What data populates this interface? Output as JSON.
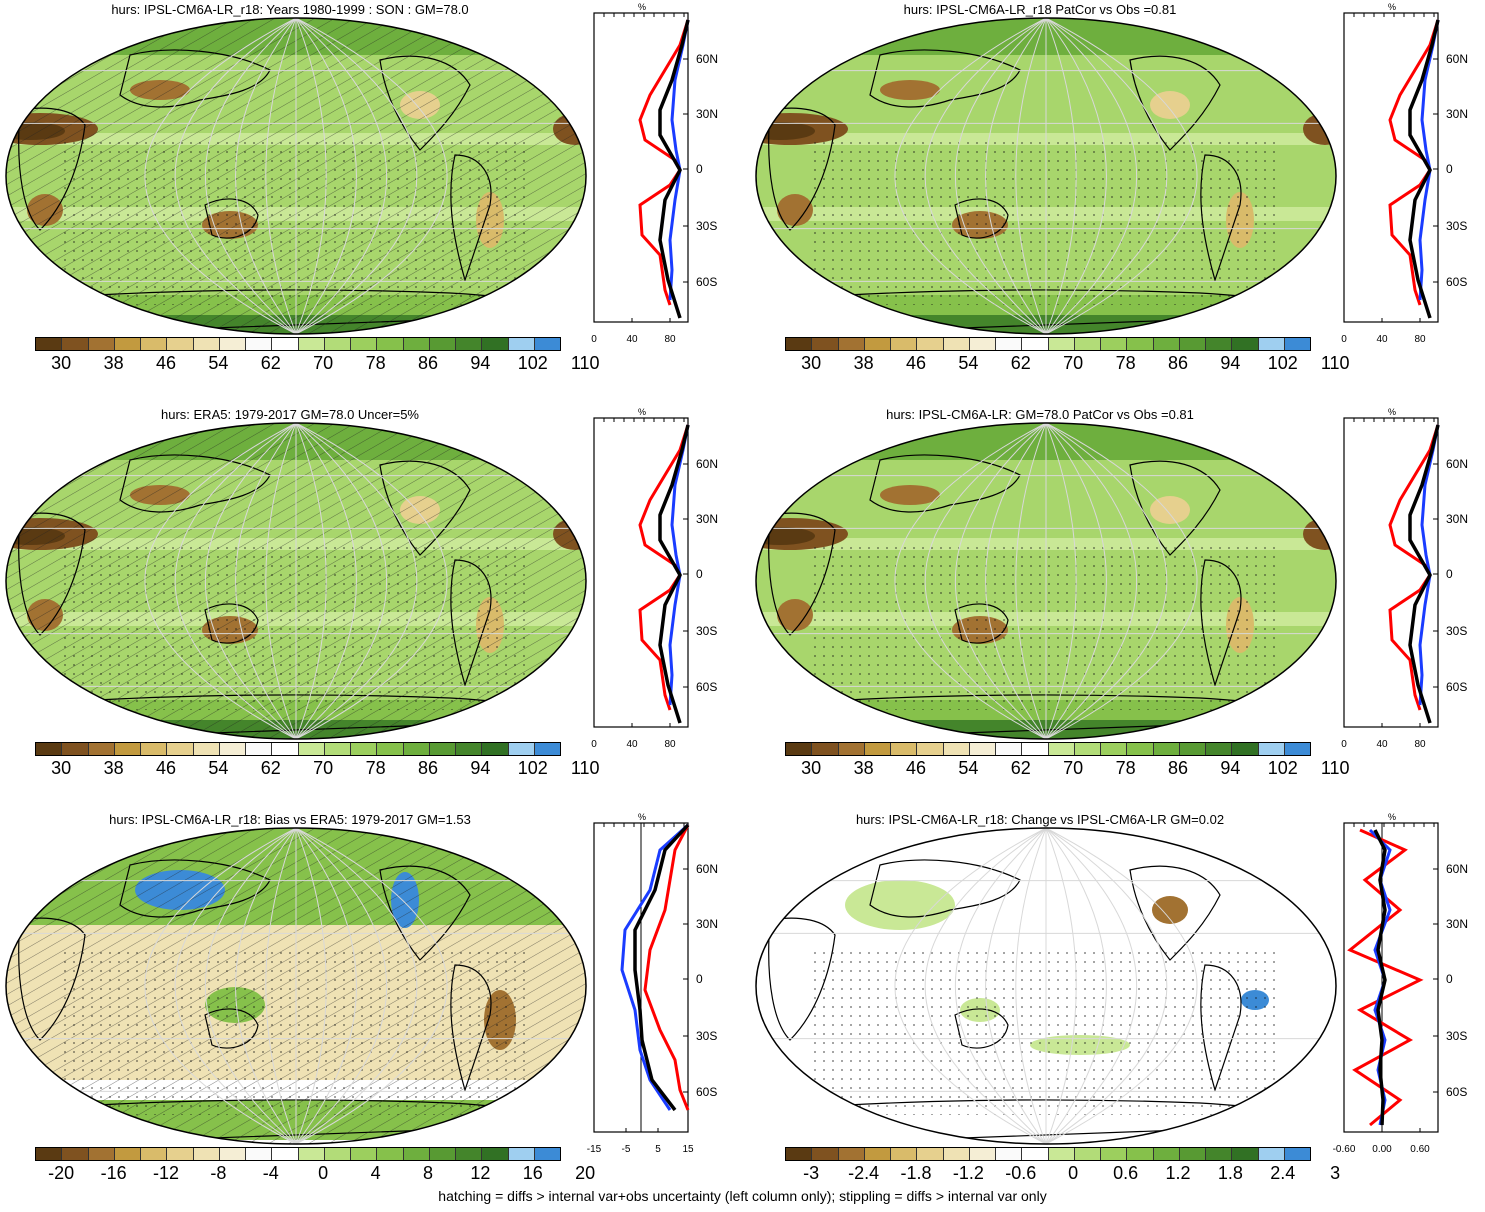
{
  "palettes": {
    "abs": [
      "#5a3a12",
      "#7f5220",
      "#a27232",
      "#c29a3f",
      "#d9bb6a",
      "#e6d08e",
      "#efe2b4",
      "#f5eed5",
      "#fafafa",
      "#ffffff",
      "#c9e896",
      "#b2dc78",
      "#9ccf5e",
      "#86c14b",
      "#6eaf3e",
      "#589a33",
      "#44852b",
      "#317124",
      "#9fcff0",
      "#3c8bd6"
    ],
    "diff": [
      "#5a3a12",
      "#7f5220",
      "#a27232",
      "#c29a3f",
      "#d9bb6a",
      "#e6d08e",
      "#efe2b4",
      "#f5eed5",
      "#fafafa",
      "#ffffff",
      "#c9e896",
      "#b2dc78",
      "#9ccf5e",
      "#86c14b",
      "#6eaf3e",
      "#589a33",
      "#44852b",
      "#317124",
      "#9fcff0",
      "#3c8bd6"
    ]
  },
  "colorbar_labels": {
    "abs": [
      "30",
      "38",
      "46",
      "54",
      "62",
      "70",
      "78",
      "86",
      "94",
      "102",
      "110"
    ],
    "bias": [
      "-20",
      "-16",
      "-12",
      "-8",
      "-4",
      "0",
      "4",
      "8",
      "12",
      "16",
      "20"
    ],
    "change": [
      "-3",
      "-2.4",
      "-1.8",
      "-1.2",
      "-0.6",
      "0",
      "0.6",
      "1.2",
      "1.8",
      "2.4",
      "3"
    ]
  },
  "lat_labels": [
    "60N",
    "30N",
    "0",
    "30S",
    "60S"
  ],
  "zonal_unit": "%",
  "panels": [
    {
      "title": "hurs: IPSL-CM6A-LR_r18: Years 1980-1999 : SON : GM=78.0",
      "cbar": "abs",
      "hatch": true,
      "stipple": true,
      "kind": "abs",
      "zonal_xticks": [
        "0",
        "40",
        "80"
      ]
    },
    {
      "title": "hurs: IPSL-CM6A-LR_r18 PatCor vs Obs =0.81",
      "cbar": "abs",
      "hatch": false,
      "stipple": true,
      "kind": "abs",
      "zonal_xticks": [
        "0",
        "40",
        "80"
      ]
    },
    {
      "title": "hurs: ERA5: 1979-2017 GM=78.0 Uncer=5%",
      "cbar": "abs",
      "hatch": true,
      "stipple": true,
      "kind": "abs",
      "zonal_xticks": [
        "0",
        "40",
        "80"
      ]
    },
    {
      "title": "hurs: IPSL-CM6A-LR: GM=78.0 PatCor vs Obs =0.81",
      "cbar": "abs",
      "hatch": false,
      "stipple": true,
      "kind": "abs",
      "zonal_xticks": [
        "0",
        "40",
        "80"
      ]
    },
    {
      "title": "hurs: IPSL-CM6A-LR_r18: Bias vs ERA5: 1979-2017  GM=1.53",
      "cbar": "bias",
      "hatch": true,
      "stipple": true,
      "kind": "bias",
      "zonal_xticks": [
        "-15",
        "-5",
        "5",
        "15"
      ]
    },
    {
      "title": "hurs: IPSL-CM6A-LR_r18: Change vs IPSL-CM6A-LR GM=0.02",
      "cbar": "change",
      "hatch": false,
      "stipple": true,
      "kind": "change",
      "zonal_xticks": [
        "-0.60",
        "0.00",
        "0.60"
      ]
    }
  ],
  "footnote": "hatching = diffs > internal var+obs uncertainty (left column only); stippling = diffs > internal var only"
}
